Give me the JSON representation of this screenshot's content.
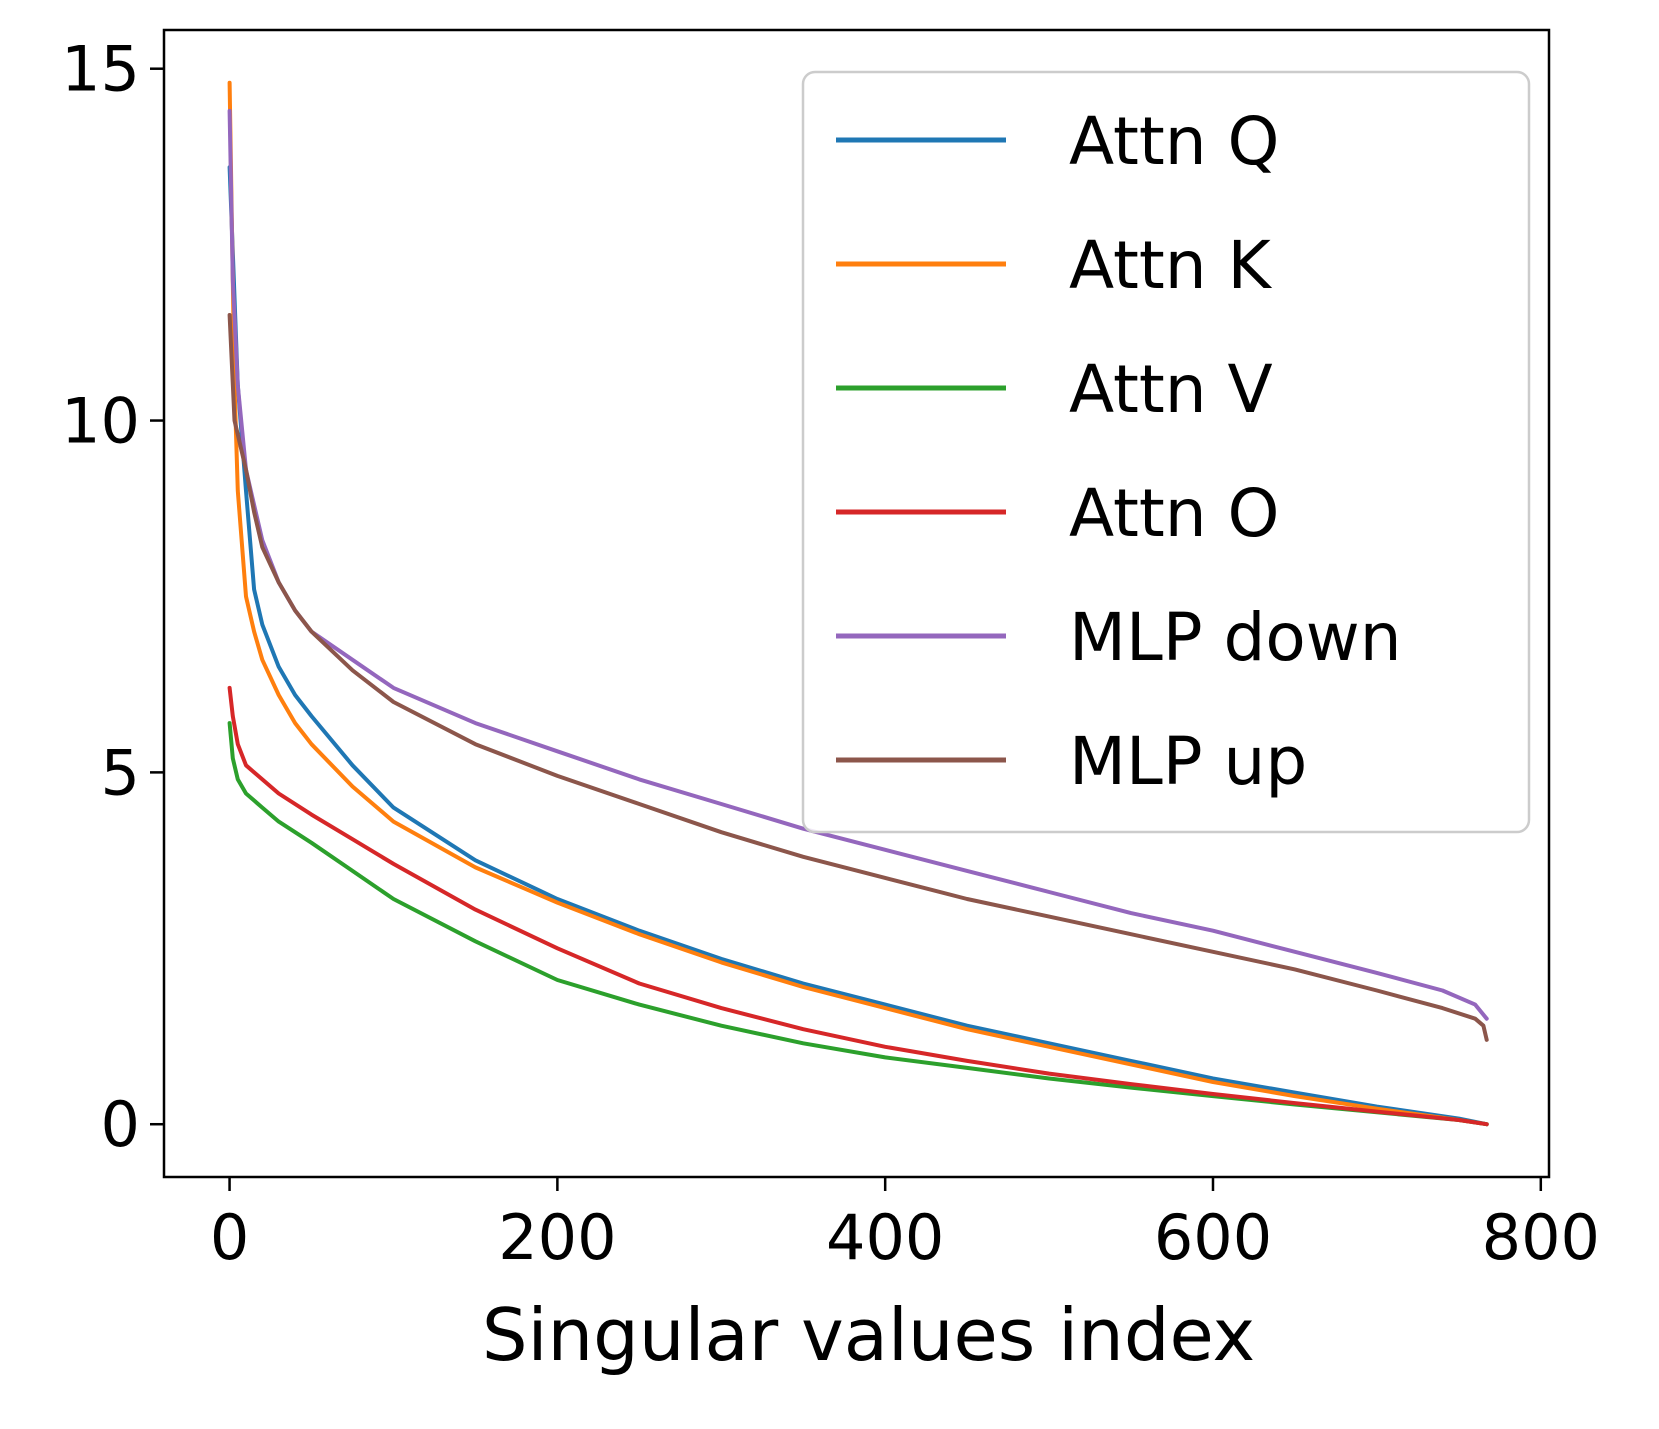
{
  "chart_data": {
    "type": "line",
    "title": "",
    "xlabel": "Singular values index",
    "ylabel": "",
    "xlim": [
      -40,
      805
    ],
    "ylim": [
      -0.75,
      15.55
    ],
    "xticks": [
      0,
      200,
      400,
      600,
      800
    ],
    "yticks": [
      0,
      5,
      10,
      15
    ],
    "legend_position": "top-right",
    "series": [
      {
        "name": "Attn Q",
        "color": "#1f77b4",
        "x": [
          0,
          5,
          10,
          15,
          20,
          30,
          40,
          50,
          75,
          100,
          150,
          200,
          250,
          300,
          350,
          400,
          450,
          500,
          550,
          600,
          650,
          700,
          750,
          767
        ],
        "y": [
          13.6,
          10.5,
          9.0,
          7.6,
          7.1,
          6.5,
          6.1,
          5.8,
          5.1,
          4.5,
          3.75,
          3.2,
          2.75,
          2.35,
          2.0,
          1.7,
          1.4,
          1.15,
          0.9,
          0.65,
          0.45,
          0.25,
          0.08,
          0.0
        ]
      },
      {
        "name": "Attn K",
        "color": "#ff7f0e",
        "x": [
          0,
          3,
          5,
          10,
          15,
          20,
          30,
          40,
          50,
          75,
          100,
          150,
          200,
          250,
          300,
          350,
          400,
          450,
          500,
          550,
          600,
          650,
          700,
          750,
          767
        ],
        "y": [
          14.8,
          10.5,
          9.0,
          7.5,
          7.0,
          6.6,
          6.1,
          5.7,
          5.4,
          4.8,
          4.3,
          3.65,
          3.15,
          2.7,
          2.3,
          1.95,
          1.65,
          1.35,
          1.1,
          0.85,
          0.6,
          0.4,
          0.22,
          0.06,
          0.0
        ]
      },
      {
        "name": "Attn V",
        "color": "#2ca02c",
        "x": [
          0,
          2,
          5,
          10,
          20,
          30,
          50,
          75,
          100,
          150,
          200,
          250,
          300,
          350,
          400,
          450,
          500,
          550,
          600,
          650,
          700,
          750,
          767
        ],
        "y": [
          5.7,
          5.2,
          4.9,
          4.7,
          4.5,
          4.3,
          4.0,
          3.6,
          3.2,
          2.6,
          2.05,
          1.7,
          1.4,
          1.15,
          0.95,
          0.8,
          0.65,
          0.52,
          0.4,
          0.28,
          0.17,
          0.06,
          0.0
        ]
      },
      {
        "name": "Attn O",
        "color": "#d62728",
        "x": [
          0,
          2,
          5,
          10,
          20,
          30,
          50,
          75,
          100,
          150,
          200,
          250,
          300,
          350,
          400,
          450,
          500,
          550,
          600,
          650,
          700,
          750,
          767
        ],
        "y": [
          6.2,
          5.8,
          5.4,
          5.1,
          4.9,
          4.7,
          4.4,
          4.05,
          3.7,
          3.05,
          2.5,
          2.0,
          1.65,
          1.35,
          1.1,
          0.9,
          0.72,
          0.57,
          0.43,
          0.3,
          0.18,
          0.06,
          0.0
        ]
      },
      {
        "name": "MLP down",
        "color": "#9467bd",
        "x": [
          0,
          2,
          5,
          10,
          15,
          20,
          30,
          40,
          50,
          75,
          100,
          150,
          200,
          250,
          300,
          350,
          400,
          450,
          500,
          550,
          600,
          650,
          700,
          740,
          760,
          767
        ],
        "y": [
          14.4,
          12.0,
          10.5,
          9.3,
          8.8,
          8.3,
          7.7,
          7.3,
          7.0,
          6.6,
          6.2,
          5.7,
          5.3,
          4.9,
          4.55,
          4.2,
          3.9,
          3.6,
          3.3,
          3.0,
          2.75,
          2.45,
          2.15,
          1.9,
          1.7,
          1.5
        ]
      },
      {
        "name": "MLP up",
        "color": "#8c564b",
        "x": [
          0,
          3,
          5,
          10,
          15,
          20,
          30,
          40,
          50,
          75,
          100,
          150,
          200,
          250,
          300,
          350,
          400,
          450,
          500,
          550,
          600,
          650,
          700,
          740,
          760,
          765,
          767
        ],
        "y": [
          11.5,
          10.0,
          9.8,
          9.3,
          8.7,
          8.2,
          7.7,
          7.3,
          7.0,
          6.45,
          6.0,
          5.4,
          4.95,
          4.55,
          4.15,
          3.8,
          3.5,
          3.2,
          2.95,
          2.7,
          2.45,
          2.2,
          1.9,
          1.65,
          1.5,
          1.4,
          1.2
        ]
      }
    ]
  }
}
